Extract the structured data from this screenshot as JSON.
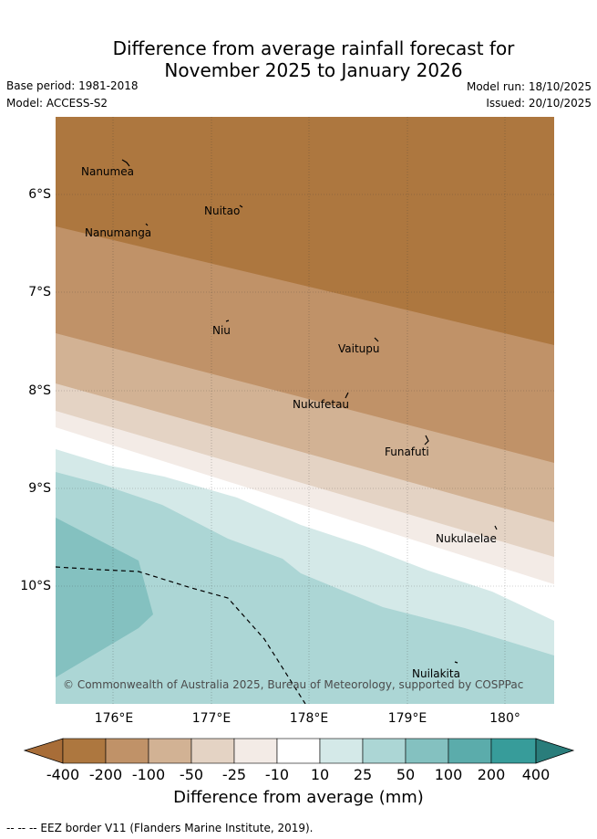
{
  "title_line1": "Difference from average rainfall forecast for",
  "title_line2": "November 2025 to January 2026",
  "meta": {
    "base_period": "Base period: 1981-2018",
    "model": "Model: ACCESS-S2",
    "model_run": "Model run: 18/10/2025",
    "issued": "Issued: 20/10/2025"
  },
  "axes": {
    "lat_labels": [
      "6°S",
      "7°S",
      "8°S",
      "9°S",
      "10°S"
    ],
    "lon_labels": [
      "176°E",
      "177°E",
      "178°E",
      "179°E",
      "180°"
    ]
  },
  "places": {
    "nanumea": "Nanumea",
    "nuitao": "Nuitao",
    "nanumanga": "Nanumanga",
    "niu": "Niu",
    "vaitupu": "Vaitupu",
    "nukufetau": "Nukufetau",
    "funafuti": "Funafuti",
    "nukulaelae": "Nukulaelae",
    "nuilakita": "Nuilakita"
  },
  "copyright": "© Commonwealth of Australia 2025, Bureau of Meteorology, supported by COSPPac",
  "colorbar": {
    "ticks": [
      "-400",
      "-200",
      "-100",
      "-50",
      "-25",
      "-10",
      "10",
      "25",
      "50",
      "100",
      "200",
      "400"
    ],
    "title": "Difference from average (mm)",
    "colors": [
      "#a86d38",
      "#ad773f",
      "#c09268",
      "#d2b294",
      "#e4d3c4",
      "#f3ebe6",
      "#ffffff",
      "#d4e9e8",
      "#acd6d5",
      "#84c1c0",
      "#5bacab",
      "#379c9a",
      "#2a7d7b"
    ]
  },
  "footnote": "-- -- -- EEZ border V11 (Flanders Marine Institute, 2019)."
}
